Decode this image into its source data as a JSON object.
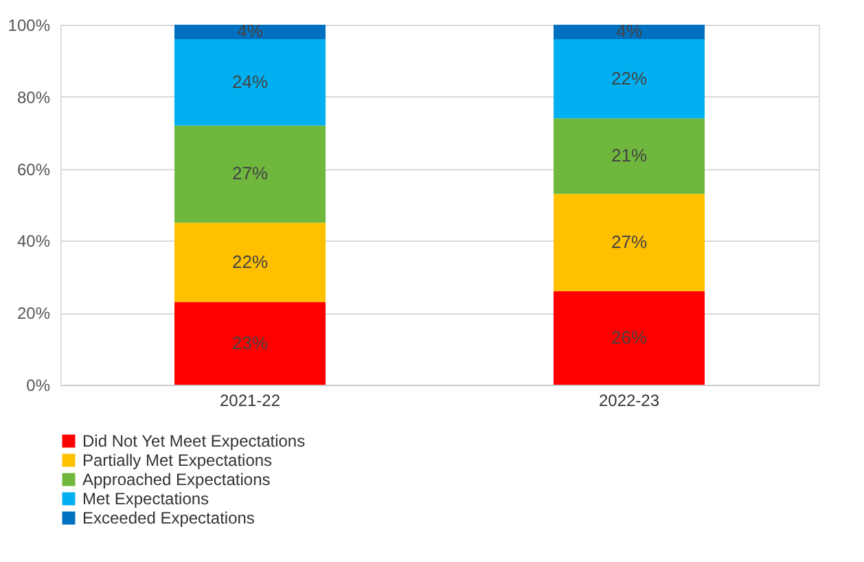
{
  "chart_data": {
    "type": "bar",
    "stacked": true,
    "categories": [
      "2021-22",
      "2022-23"
    ],
    "series": [
      {
        "name": "Did Not Yet Meet Expectations",
        "color": "#ff0000",
        "values": [
          23,
          26
        ]
      },
      {
        "name": "Partially Met Expectations",
        "color": "#ffc000",
        "values": [
          22,
          27
        ]
      },
      {
        "name": "Approached Expectations",
        "color": "#70b73d",
        "values": [
          27,
          21
        ]
      },
      {
        "name": "Met Expectations",
        "color": "#00b0f0",
        "values": [
          24,
          22
        ]
      },
      {
        "name": "Exceeded Expectations",
        "color": "#0070c0",
        "values": [
          4,
          4
        ]
      }
    ],
    "ylim": [
      0,
      100
    ],
    "yticks": [
      {
        "value": 0,
        "label": "0%"
      },
      {
        "value": 20,
        "label": "20%"
      },
      {
        "value": 40,
        "label": "40%"
      },
      {
        "value": 60,
        "label": "60%"
      },
      {
        "value": 80,
        "label": "80%"
      },
      {
        "value": 100,
        "label": "100%"
      }
    ],
    "value_labels": [
      [
        "23%",
        "26%"
      ],
      [
        "22%",
        "27%"
      ],
      [
        "27%",
        "21%"
      ],
      [
        "24%",
        "22%"
      ],
      [
        "4%",
        "4%"
      ]
    ],
    "grid": "y",
    "legend": "bottom"
  }
}
